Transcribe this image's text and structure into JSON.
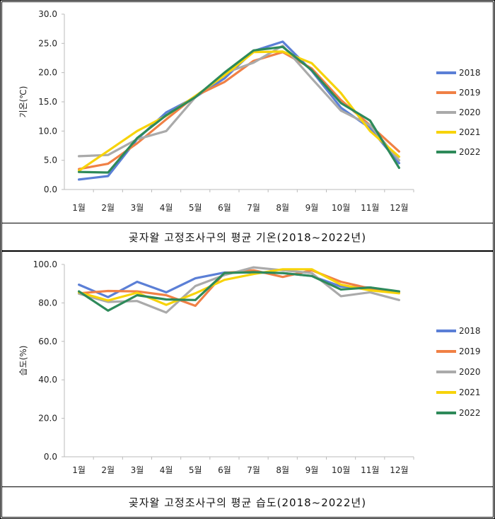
{
  "chart_data": [
    {
      "type": "line",
      "title": "곶자왈 고정조사구의 평균 기온(2018~2022년)",
      "xlabel": "",
      "ylabel": "기온(℃)",
      "categories": [
        "1월",
        "2월",
        "3월",
        "4월",
        "5월",
        "6월",
        "7월",
        "8월",
        "9월",
        "10월",
        "11월",
        "12월"
      ],
      "ylim": [
        0,
        30
      ],
      "yticks": [
        "0.0",
        "5.0",
        "10.0",
        "15.0",
        "20.0",
        "25.0",
        "30.0"
      ],
      "grid": false,
      "legend": "right",
      "series": [
        {
          "name": "2018",
          "color": "#5b7fd6",
          "values": [
            1.7,
            2.3,
            8.6,
            13.2,
            15.8,
            19.0,
            23.7,
            25.3,
            20.3,
            14.0,
            10.5,
            4.5
          ]
        },
        {
          "name": "2019",
          "color": "#f08045",
          "values": [
            3.5,
            4.4,
            7.9,
            12.0,
            16.0,
            18.4,
            22.0,
            23.5,
            20.7,
            15.3,
            11.0,
            6.5
          ]
        },
        {
          "name": "2020",
          "color": "#aaaaaa",
          "values": [
            5.7,
            5.9,
            8.6,
            10.0,
            15.8,
            19.9,
            21.7,
            24.6,
            19.0,
            13.5,
            11.0,
            5.0
          ]
        },
        {
          "name": "2021",
          "color": "#f7d30a",
          "values": [
            3.2,
            6.6,
            10.0,
            12.6,
            16.0,
            19.5,
            23.5,
            23.6,
            21.6,
            16.5,
            10.0,
            5.6
          ]
        },
        {
          "name": "2022",
          "color": "#2e8a5a",
          "values": [
            3.0,
            2.9,
            8.8,
            12.7,
            15.8,
            20.0,
            23.8,
            24.4,
            20.4,
            14.8,
            11.8,
            3.7
          ]
        }
      ]
    },
    {
      "type": "line",
      "title": "곶자왈 고정조사구의 평균 습도(2018~2022년)",
      "xlabel": "",
      "ylabel": "습도(%)",
      "categories": [
        "1월",
        "2월",
        "3월",
        "4월",
        "5월",
        "6월",
        "7월",
        "8월",
        "9월",
        "10월",
        "11월",
        "12월"
      ],
      "ylim": [
        0,
        100
      ],
      "yticks": [
        "0.0",
        "20.0",
        "40.0",
        "60.0",
        "80.0",
        "100.0"
      ],
      "grid": false,
      "legend": "right",
      "series": [
        {
          "name": "2018",
          "color": "#5b7fd6",
          "values": [
            89.5,
            83.0,
            91.0,
            85.5,
            92.8,
            95.8,
            95.8,
            95.5,
            94.0,
            88.5,
            88.0,
            85.5
          ]
        },
        {
          "name": "2019",
          "color": "#f08045",
          "values": [
            85.0,
            86.2,
            86.0,
            84.0,
            78.5,
            95.5,
            97.0,
            93.5,
            97.0,
            91.0,
            87.5,
            85.5
          ]
        },
        {
          "name": "2020",
          "color": "#aaaaaa",
          "values": [
            84.8,
            80.5,
            81.0,
            75.0,
            88.8,
            94.5,
            98.5,
            97.0,
            95.5,
            83.5,
            85.5,
            81.5
          ]
        },
        {
          "name": "2021",
          "color": "#f7d30a",
          "values": [
            85.5,
            81.3,
            85.3,
            79.0,
            85.0,
            92.0,
            95.0,
            97.5,
            97.5,
            89.5,
            86.5,
            85.0
          ]
        },
        {
          "name": "2022",
          "color": "#2e8a5a",
          "values": [
            86.0,
            76.0,
            84.0,
            81.8,
            81.5,
            95.5,
            96.0,
            95.5,
            94.0,
            87.0,
            88.0,
            86.0
          ]
        }
      ]
    }
  ]
}
